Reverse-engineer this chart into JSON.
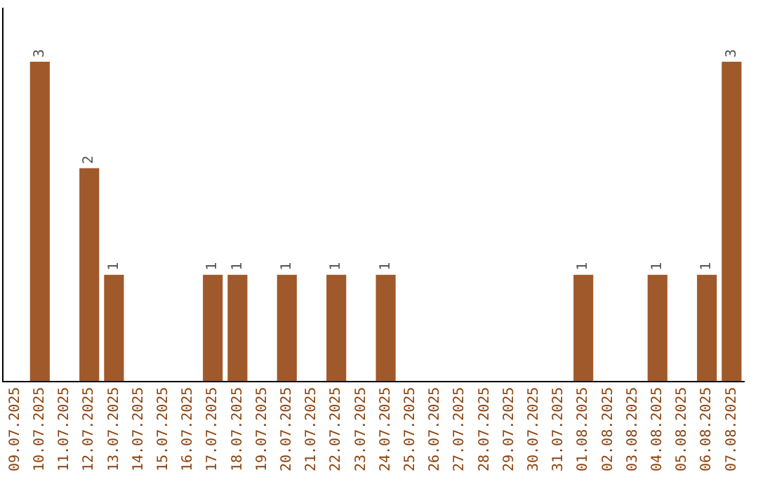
{
  "chart_data": {
    "type": "bar",
    "categories": [
      "09.07.2025",
      "10.07.2025",
      "11.07.2025",
      "12.07.2025",
      "13.07.2025",
      "14.07.2025",
      "15.07.2025",
      "16.07.2025",
      "17.07.2025",
      "18.07.2025",
      "19.07.2025",
      "20.07.2025",
      "21.07.2025",
      "22.07.2025",
      "23.07.2025",
      "24.07.2025",
      "25.07.2025",
      "26.07.2025",
      "27.07.2025",
      "28.07.2025",
      "29.07.2025",
      "30.07.2025",
      "31.07.2025",
      "01.08.2025",
      "02.08.2025",
      "03.08.2025",
      "04.08.2025",
      "05.08.2025",
      "06.08.2025",
      "07.08.2025"
    ],
    "values": [
      0,
      3,
      0,
      2,
      1,
      0,
      0,
      0,
      1,
      1,
      0,
      1,
      0,
      1,
      0,
      1,
      0,
      0,
      0,
      0,
      0,
      0,
      0,
      1,
      0,
      0,
      1,
      0,
      1,
      3
    ],
    "value_labels": [
      null,
      "3",
      null,
      "2",
      "1",
      null,
      null,
      null,
      "1",
      "1",
      null,
      "1",
      null,
      "1",
      null,
      "1",
      null,
      null,
      null,
      null,
      null,
      null,
      null,
      "1",
      null,
      null,
      "1",
      null,
      "1",
      "3"
    ],
    "color": "#a0592a",
    "tick_labels": "x",
    "grid": false,
    "legend": false
  }
}
